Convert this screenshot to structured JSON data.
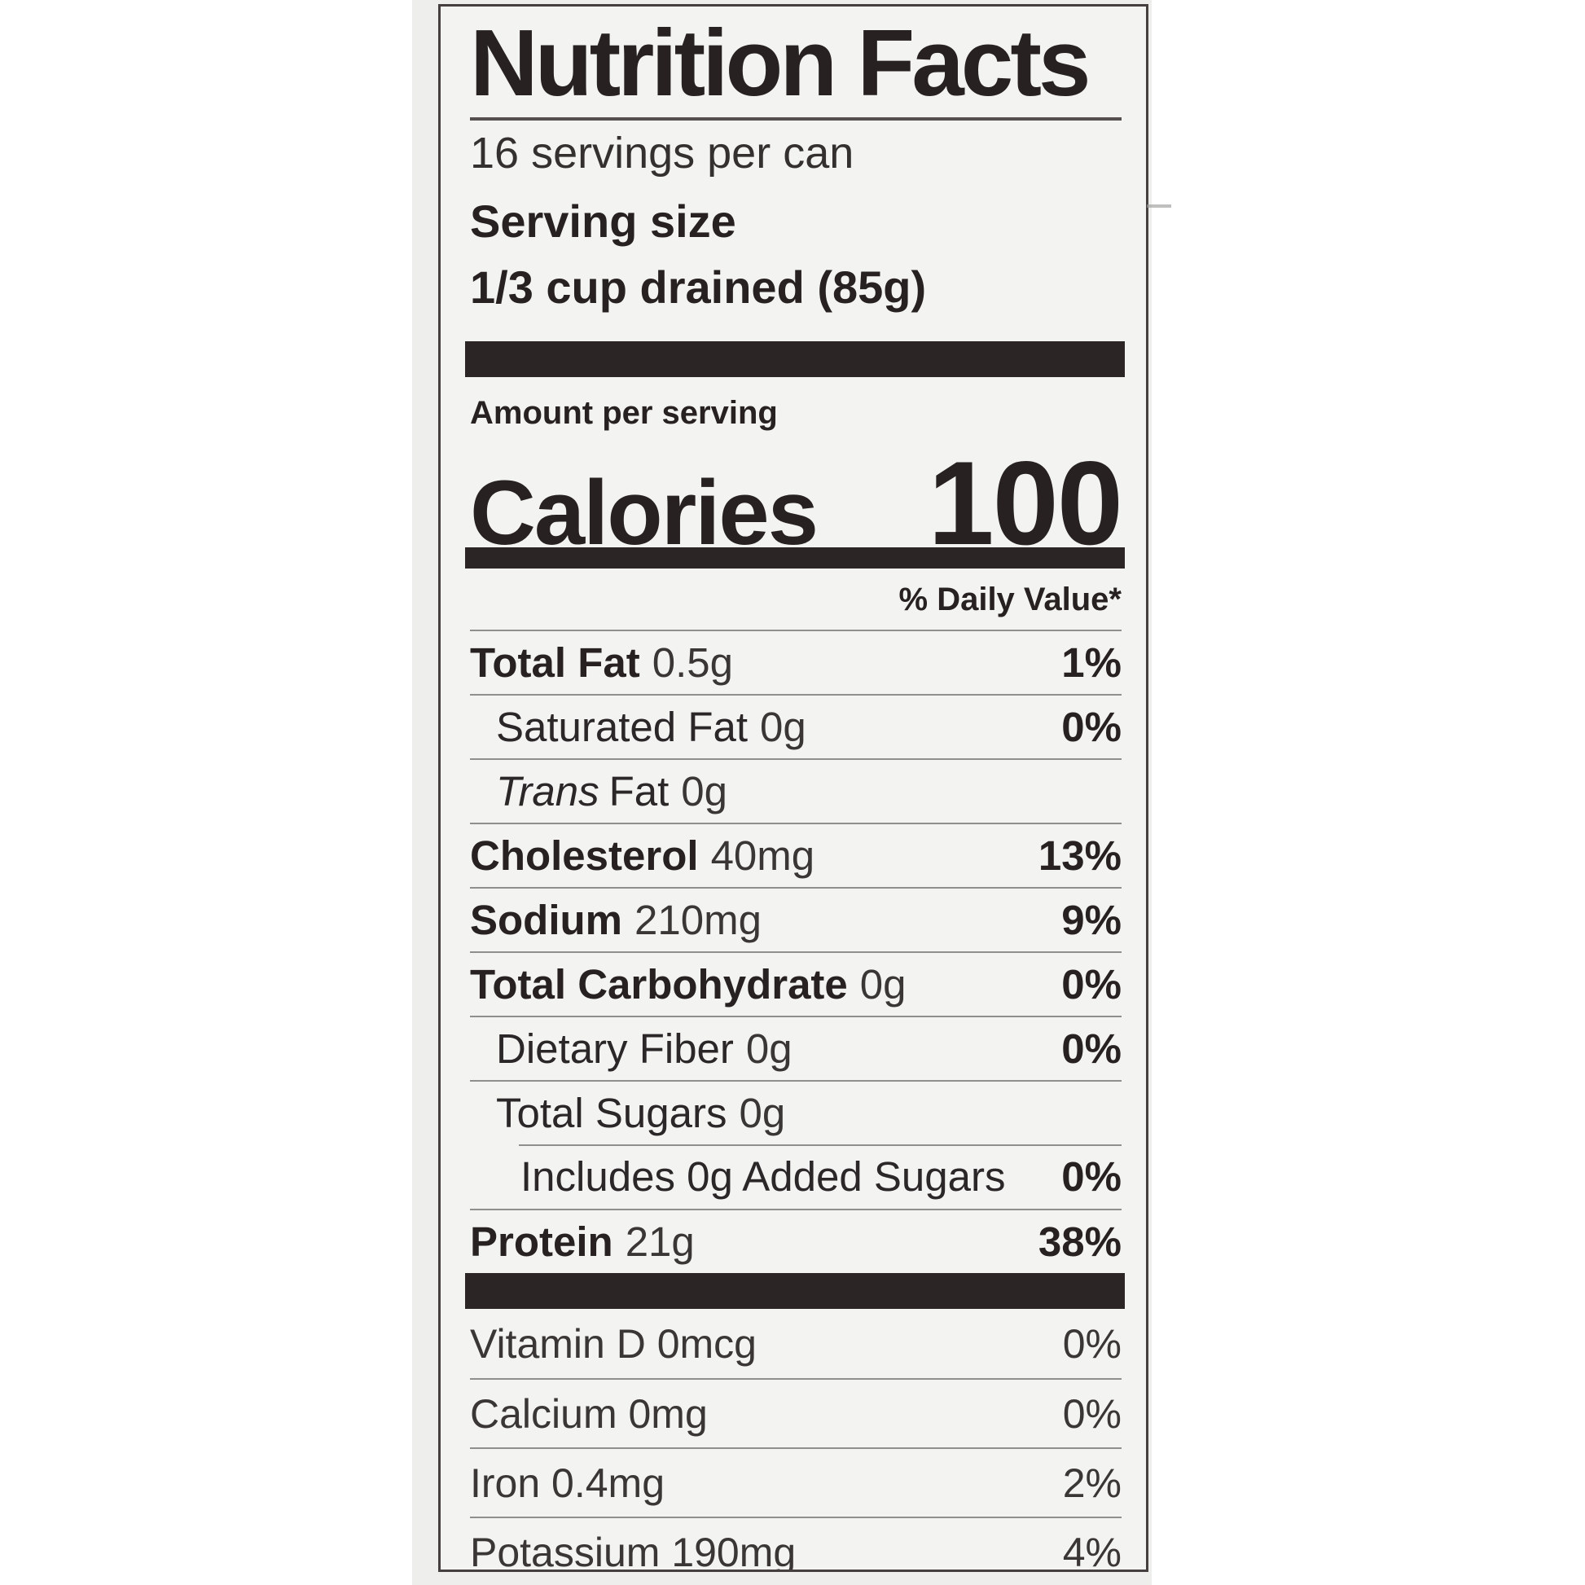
{
  "nutrition_label": {
    "title": "Nutrition Facts",
    "servings_per_container": "16 servings per can",
    "serving_size_label": "Serving size",
    "serving_size_value": "1/3 cup drained (85g)",
    "amount_per_serving_label": "Amount per serving",
    "calories_label": "Calories",
    "calories_value": "100",
    "daily_value_header": "% Daily Value*",
    "nutrient_rows": [
      {
        "name": "Total Fat",
        "amount": "0.5g",
        "percent": "1%"
      },
      {
        "name": "Saturated Fat",
        "amount": "0g",
        "percent": "0%"
      },
      {
        "name_italic": "Trans",
        "name": "Fat",
        "amount": "0g",
        "percent": ""
      },
      {
        "name": "Cholesterol",
        "amount": "40mg",
        "percent": "13%"
      },
      {
        "name": "Sodium",
        "amount": "210mg",
        "percent": "9%"
      },
      {
        "name": "Total Carbohydrate",
        "amount": "0g",
        "percent": "0%"
      },
      {
        "name": "Dietary Fiber",
        "amount": "0g",
        "percent": "0%"
      },
      {
        "name": "Total Sugars",
        "amount": "0g",
        "percent": ""
      },
      {
        "name": "Includes 0g Added Sugars",
        "amount": "",
        "percent": "0%"
      },
      {
        "name": "Protein",
        "amount": "21g",
        "percent": "38%"
      }
    ],
    "micronutrient_rows": [
      {
        "name": "Vitamin D 0mcg",
        "percent": "0%"
      },
      {
        "name": "Calcium 0mg",
        "percent": "0%"
      },
      {
        "name": "Iron 0.4mg",
        "percent": "2%"
      },
      {
        "name": "Potassium 190mg",
        "percent": "4%"
      }
    ],
    "colors": {
      "panel_background": "#f3f3f1",
      "photo_background": "#eeeeec",
      "text": "#272122",
      "section_bar": "#2b2526",
      "hairline": "#8f8f8d",
      "border": "#45403f"
    }
  }
}
